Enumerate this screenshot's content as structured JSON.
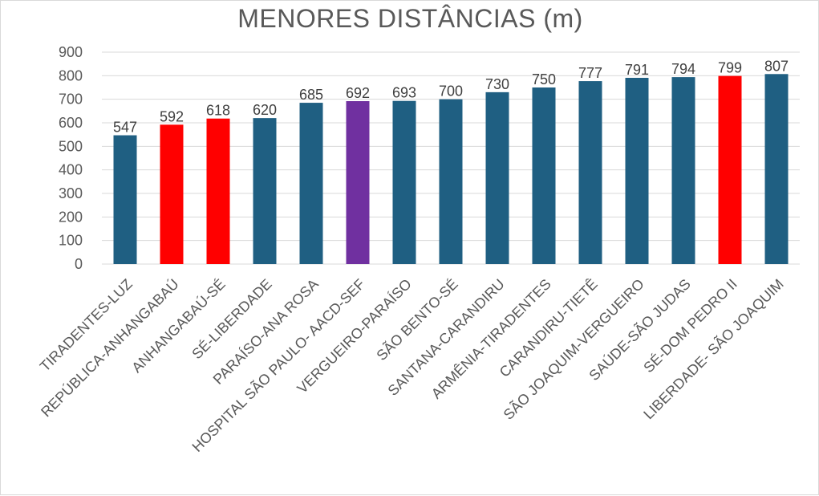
{
  "chart_data": {
    "type": "bar",
    "title": "MENORES DISTÂNCIAS (m)",
    "xlabel": "",
    "ylabel": "",
    "ylim": [
      0,
      900
    ],
    "yticks": [
      0,
      100,
      200,
      300,
      400,
      500,
      600,
      700,
      800,
      900
    ],
    "grid": true,
    "legend": "none",
    "categories": [
      "TIRADENTES-LUZ",
      "REPÚBLICA-ANHANGABAÚ",
      "ANHANGABAÚ-SÉ",
      "SÉ-LIBERDADE",
      "PARAÍSO-ANA ROSA",
      "HOSPITAL SÃO PAULO- AACD-SEF",
      "VERGUEIRO-PARAÍSO",
      "SÃO BENTO-SÉ",
      "SANTANA-CARANDIRU",
      "ARMÊNIA-TIRADENTES",
      "CARANDIRU-TIETÊ",
      "SÃO JOAQUIM-VERGUEIRO",
      "SAÚDE-SÃO JUDAS",
      "SÉ-DOM PEDRO II",
      "LIBERDADE- SÃO JOAQUIM"
    ],
    "values": [
      547,
      592,
      618,
      620,
      685,
      692,
      693,
      700,
      730,
      750,
      777,
      791,
      794,
      799,
      807
    ],
    "colors": [
      "#1f5f82",
      "#ff0000",
      "#ff0000",
      "#1f5f82",
      "#1f5f82",
      "#7030a0",
      "#1f5f82",
      "#1f5f82",
      "#1f5f82",
      "#1f5f82",
      "#1f5f82",
      "#1f5f82",
      "#1f5f82",
      "#ff0000",
      "#1f5f82"
    ]
  }
}
